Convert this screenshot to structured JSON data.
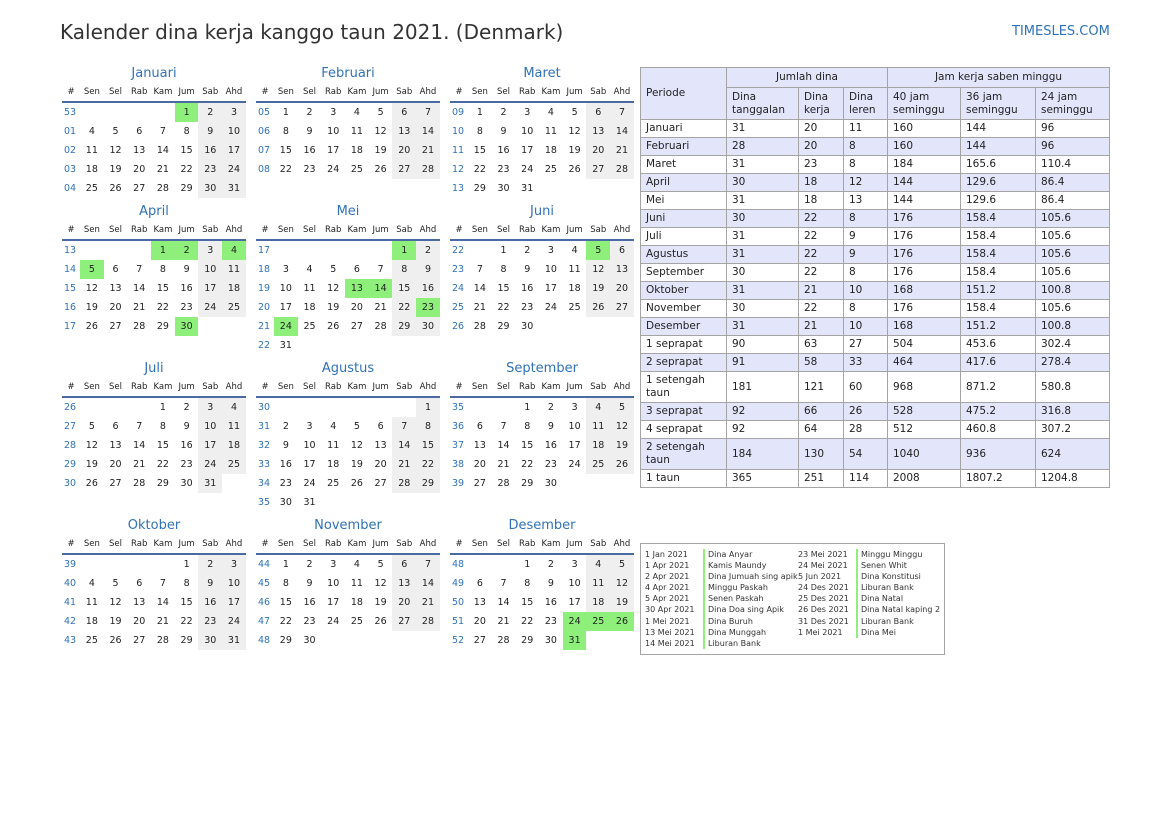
{
  "header": {
    "title": "Kalender dina kerja kanggo taun 2021. (Denmark)",
    "site": "TIMESLES.COM"
  },
  "weekday_headers": [
    "#",
    "Sen",
    "Sel",
    "Rab",
    "Kam",
    "Jum",
    "Sab",
    "Ahd"
  ],
  "colors": {
    "accent": "#2f72b8",
    "holiday": "#8ef07a",
    "weekend": "#efefef",
    "table_header": "#e3e6fb"
  },
  "months": [
    {
      "name": "Januari",
      "weeks": [
        [
          "53",
          "",
          "",
          "",
          "",
          "1",
          "2",
          "3"
        ],
        [
          "01",
          "4",
          "5",
          "6",
          "7",
          "8",
          "9",
          "10"
        ],
        [
          "02",
          "11",
          "12",
          "13",
          "14",
          "15",
          "16",
          "17"
        ],
        [
          "03",
          "18",
          "19",
          "20",
          "21",
          "22",
          "23",
          "24"
        ],
        [
          "04",
          "25",
          "26",
          "27",
          "28",
          "29",
          "30",
          "31"
        ]
      ],
      "holidays": [
        "1"
      ]
    },
    {
      "name": "Februari",
      "weeks": [
        [
          "05",
          "1",
          "2",
          "3",
          "4",
          "5",
          "6",
          "7"
        ],
        [
          "06",
          "8",
          "9",
          "10",
          "11",
          "12",
          "13",
          "14"
        ],
        [
          "07",
          "15",
          "16",
          "17",
          "18",
          "19",
          "20",
          "21"
        ],
        [
          "08",
          "22",
          "23",
          "24",
          "25",
          "26",
          "27",
          "28"
        ]
      ],
      "holidays": []
    },
    {
      "name": "Maret",
      "weeks": [
        [
          "09",
          "1",
          "2",
          "3",
          "4",
          "5",
          "6",
          "7"
        ],
        [
          "10",
          "8",
          "9",
          "10",
          "11",
          "12",
          "13",
          "14"
        ],
        [
          "11",
          "15",
          "16",
          "17",
          "18",
          "19",
          "20",
          "21"
        ],
        [
          "12",
          "22",
          "23",
          "24",
          "25",
          "26",
          "27",
          "28"
        ],
        [
          "13",
          "29",
          "30",
          "31",
          "",
          "",
          "",
          ""
        ]
      ],
      "holidays": []
    },
    {
      "name": "April",
      "weeks": [
        [
          "13",
          "",
          "",
          "",
          "1",
          "2",
          "3",
          "4"
        ],
        [
          "14",
          "5",
          "6",
          "7",
          "8",
          "9",
          "10",
          "11"
        ],
        [
          "15",
          "12",
          "13",
          "14",
          "15",
          "16",
          "17",
          "18"
        ],
        [
          "16",
          "19",
          "20",
          "21",
          "22",
          "23",
          "24",
          "25"
        ],
        [
          "17",
          "26",
          "27",
          "28",
          "29",
          "30",
          "",
          ""
        ]
      ],
      "holidays": [
        "1",
        "2",
        "4",
        "5",
        "30"
      ]
    },
    {
      "name": "Mei",
      "weeks": [
        [
          "17",
          "",
          "",
          "",
          "",
          "",
          "1",
          "2"
        ],
        [
          "18",
          "3",
          "4",
          "5",
          "6",
          "7",
          "8",
          "9"
        ],
        [
          "19",
          "10",
          "11",
          "12",
          "13",
          "14",
          "15",
          "16"
        ],
        [
          "20",
          "17",
          "18",
          "19",
          "20",
          "21",
          "22",
          "23"
        ],
        [
          "21",
          "24",
          "25",
          "26",
          "27",
          "28",
          "29",
          "30"
        ],
        [
          "22",
          "31",
          "",
          "",
          "",
          "",
          "",
          ""
        ]
      ],
      "holidays": [
        "1",
        "13",
        "14",
        "23",
        "24"
      ]
    },
    {
      "name": "Juni",
      "weeks": [
        [
          "22",
          "",
          "1",
          "2",
          "3",
          "4",
          "5",
          "6"
        ],
        [
          "23",
          "7",
          "8",
          "9",
          "10",
          "11",
          "12",
          "13"
        ],
        [
          "24",
          "14",
          "15",
          "16",
          "17",
          "18",
          "19",
          "20"
        ],
        [
          "25",
          "21",
          "22",
          "23",
          "24",
          "25",
          "26",
          "27"
        ],
        [
          "26",
          "28",
          "29",
          "30",
          "",
          "",
          "",
          ""
        ]
      ],
      "holidays": [
        "5"
      ]
    },
    {
      "name": "Juli",
      "weeks": [
        [
          "26",
          "",
          "",
          "",
          "1",
          "2",
          "3",
          "4"
        ],
        [
          "27",
          "5",
          "6",
          "7",
          "8",
          "9",
          "10",
          "11"
        ],
        [
          "28",
          "12",
          "13",
          "14",
          "15",
          "16",
          "17",
          "18"
        ],
        [
          "29",
          "19",
          "20",
          "21",
          "22",
          "23",
          "24",
          "25"
        ],
        [
          "30",
          "26",
          "27",
          "28",
          "29",
          "30",
          "31",
          ""
        ]
      ],
      "holidays": []
    },
    {
      "name": "Agustus",
      "weeks": [
        [
          "30",
          "",
          "",
          "",
          "",
          "",
          "",
          "1"
        ],
        [
          "31",
          "2",
          "3",
          "4",
          "5",
          "6",
          "7",
          "8"
        ],
        [
          "32",
          "9",
          "10",
          "11",
          "12",
          "13",
          "14",
          "15"
        ],
        [
          "33",
          "16",
          "17",
          "18",
          "19",
          "20",
          "21",
          "22"
        ],
        [
          "34",
          "23",
          "24",
          "25",
          "26",
          "27",
          "28",
          "29"
        ],
        [
          "35",
          "30",
          "31",
          "",
          "",
          "",
          "",
          ""
        ]
      ],
      "holidays": []
    },
    {
      "name": "September",
      "weeks": [
        [
          "35",
          "",
          "",
          "1",
          "2",
          "3",
          "4",
          "5"
        ],
        [
          "36",
          "6",
          "7",
          "8",
          "9",
          "10",
          "11",
          "12"
        ],
        [
          "37",
          "13",
          "14",
          "15",
          "16",
          "17",
          "18",
          "19"
        ],
        [
          "38",
          "20",
          "21",
          "22",
          "23",
          "24",
          "25",
          "26"
        ],
        [
          "39",
          "27",
          "28",
          "29",
          "30",
          "",
          "",
          ""
        ]
      ],
      "holidays": []
    },
    {
      "name": "Oktober",
      "weeks": [
        [
          "39",
          "",
          "",
          "",
          "",
          "1",
          "2",
          "3"
        ],
        [
          "40",
          "4",
          "5",
          "6",
          "7",
          "8",
          "9",
          "10"
        ],
        [
          "41",
          "11",
          "12",
          "13",
          "14",
          "15",
          "16",
          "17"
        ],
        [
          "42",
          "18",
          "19",
          "20",
          "21",
          "22",
          "23",
          "24"
        ],
        [
          "43",
          "25",
          "26",
          "27",
          "28",
          "29",
          "30",
          "31"
        ]
      ],
      "holidays": []
    },
    {
      "name": "November",
      "weeks": [
        [
          "44",
          "1",
          "2",
          "3",
          "4",
          "5",
          "6",
          "7"
        ],
        [
          "45",
          "8",
          "9",
          "10",
          "11",
          "12",
          "13",
          "14"
        ],
        [
          "46",
          "15",
          "16",
          "17",
          "18",
          "19",
          "20",
          "21"
        ],
        [
          "47",
          "22",
          "23",
          "24",
          "25",
          "26",
          "27",
          "28"
        ],
        [
          "48",
          "29",
          "30",
          "",
          "",
          "",
          "",
          ""
        ]
      ],
      "holidays": []
    },
    {
      "name": "Desember",
      "weeks": [
        [
          "48",
          "",
          "",
          "1",
          "2",
          "3",
          "4",
          "5"
        ],
        [
          "49",
          "6",
          "7",
          "8",
          "9",
          "10",
          "11",
          "12"
        ],
        [
          "50",
          "13",
          "14",
          "15",
          "16",
          "17",
          "18",
          "19"
        ],
        [
          "51",
          "20",
          "21",
          "22",
          "23",
          "24",
          "25",
          "26"
        ],
        [
          "52",
          "27",
          "28",
          "29",
          "30",
          "31",
          "",
          ""
        ]
      ],
      "holidays": [
        "24",
        "25",
        "26",
        "31"
      ]
    }
  ],
  "stats_table": {
    "period_header": "Periode",
    "days_group": "Jumlah dina",
    "hours_group": "Jam kerja saben minggu",
    "subheaders": [
      "Dina tanggalan",
      "Dina kerja",
      "Dina leren",
      "40 jam seminggu",
      "36 jam seminggu",
      "24 jam seminggu"
    ],
    "rows": [
      [
        "Januari",
        "31",
        "20",
        "11",
        "160",
        "144",
        "96"
      ],
      [
        "Februari",
        "28",
        "20",
        "8",
        "160",
        "144",
        "96"
      ],
      [
        "Maret",
        "31",
        "23",
        "8",
        "184",
        "165.6",
        "110.4"
      ],
      [
        "April",
        "30",
        "18",
        "12",
        "144",
        "129.6",
        "86.4"
      ],
      [
        "Mei",
        "31",
        "18",
        "13",
        "144",
        "129.6",
        "86.4"
      ],
      [
        "Juni",
        "30",
        "22",
        "8",
        "176",
        "158.4",
        "105.6"
      ],
      [
        "Juli",
        "31",
        "22",
        "9",
        "176",
        "158.4",
        "105.6"
      ],
      [
        "Agustus",
        "31",
        "22",
        "9",
        "176",
        "158.4",
        "105.6"
      ],
      [
        "September",
        "30",
        "22",
        "8",
        "176",
        "158.4",
        "105.6"
      ],
      [
        "Oktober",
        "31",
        "21",
        "10",
        "168",
        "151.2",
        "100.8"
      ],
      [
        "November",
        "30",
        "22",
        "8",
        "176",
        "158.4",
        "105.6"
      ],
      [
        "Desember",
        "31",
        "21",
        "10",
        "168",
        "151.2",
        "100.8"
      ],
      [
        "1 seprapat",
        "90",
        "63",
        "27",
        "504",
        "453.6",
        "302.4"
      ],
      [
        "2 seprapat",
        "91",
        "58",
        "33",
        "464",
        "417.6",
        "278.4"
      ],
      [
        "1 setengah taun",
        "181",
        "121",
        "60",
        "968",
        "871.2",
        "580.8"
      ],
      [
        "3 seprapat",
        "92",
        "66",
        "26",
        "528",
        "475.2",
        "316.8"
      ],
      [
        "4 seprapat",
        "92",
        "64",
        "28",
        "512",
        "460.8",
        "307.2"
      ],
      [
        "2 setengah taun",
        "184",
        "130",
        "54",
        "1040",
        "936",
        "624"
      ],
      [
        "1 taun",
        "365",
        "251",
        "114",
        "2008",
        "1807.2",
        "1204.8"
      ]
    ]
  },
  "holidays_list": {
    "col1": [
      {
        "date": "1 Jan 2021",
        "name": "Dina Anyar"
      },
      {
        "date": "1 Apr 2021",
        "name": "Kamis Maundy"
      },
      {
        "date": "2 Apr 2021",
        "name": "Dina Jumuah sing apik"
      },
      {
        "date": "4 Apr 2021",
        "name": "Minggu Paskah"
      },
      {
        "date": "5 Apr 2021",
        "name": "Senen Paskah"
      },
      {
        "date": "30 Apr 2021",
        "name": "Dina Doa sing Apik"
      },
      {
        "date": "1 Mei 2021",
        "name": "Dina Buruh"
      },
      {
        "date": "13 Mei 2021",
        "name": "Dina Munggah"
      },
      {
        "date": "14 Mei 2021",
        "name": "Liburan Bank"
      }
    ],
    "col2": [
      {
        "date": "23 Mei 2021",
        "name": "Minggu Minggu"
      },
      {
        "date": "24 Mei 2021",
        "name": "Senen Whit"
      },
      {
        "date": "5 Jun 2021",
        "name": "Dina Konstitusi"
      },
      {
        "date": "24 Des 2021",
        "name": "Liburan Bank"
      },
      {
        "date": "25 Des 2021",
        "name": "Dina Natal"
      },
      {
        "date": "26 Des 2021",
        "name": "Dina Natal kaping 2"
      },
      {
        "date": "31 Des 2021",
        "name": "Liburan Bank"
      },
      {
        "date": "1 Mei 2021",
        "name": "Dina Mei"
      }
    ]
  }
}
